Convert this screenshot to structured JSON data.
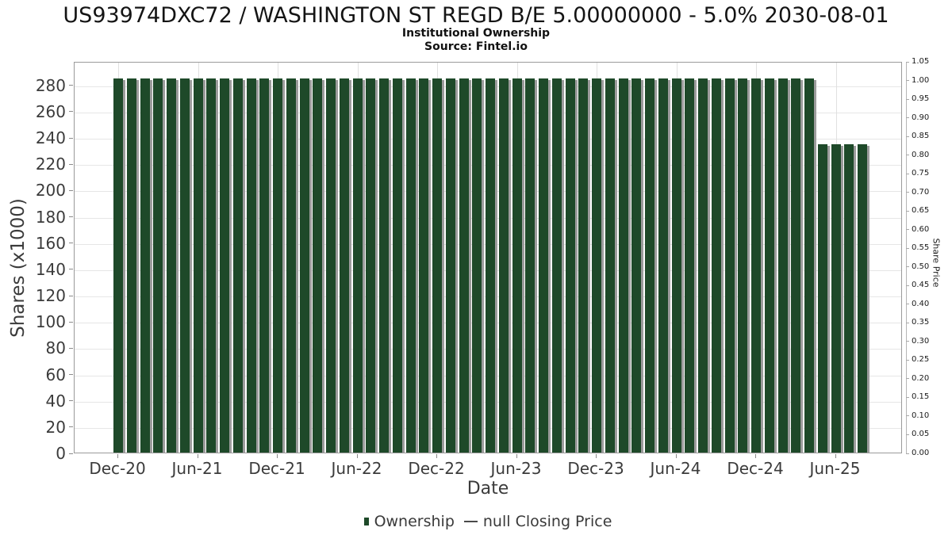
{
  "title": "US93974DXC72 / WASHINGTON ST REGD B/E 5.00000000 - 5.0% 2030-08-01",
  "subtitle": "Institutional Ownership",
  "source": "Source: Fintel.io",
  "legend": {
    "ownership_label": "Ownership",
    "price_label": "null Closing Price"
  },
  "colors": {
    "bar": "#1e4929",
    "bar_shadow": "#9c9c9c",
    "grid": "#e6e6e6",
    "spine": "#9a9a9a"
  },
  "axes": {
    "left": {
      "label": "Shares (x1000)",
      "ticks": [
        0,
        20,
        40,
        60,
        80,
        100,
        120,
        140,
        160,
        180,
        200,
        220,
        240,
        260,
        280
      ],
      "max": 298
    },
    "right": {
      "label": "Share Price",
      "ticks": [
        "0.00",
        "0.05",
        "0.10",
        "0.15",
        "0.20",
        "0.25",
        "0.30",
        "0.35",
        "0.40",
        "0.45",
        "0.50",
        "0.55",
        "0.60",
        "0.65",
        "0.70",
        "0.75",
        "0.80",
        "0.85",
        "0.90",
        "0.95",
        "1.00",
        "1.05"
      ],
      "max": 1.05
    },
    "x": {
      "label": "Date",
      "ticks": [
        "Dec-20",
        "Jun-21",
        "Dec-21",
        "Jun-22",
        "Dec-22",
        "Jun-23",
        "Dec-23",
        "Jun-24",
        "Dec-24",
        "Jun-25"
      ]
    }
  },
  "chart_data": {
    "type": "bar",
    "title": "US93974DXC72 / WASHINGTON ST REGD B/E 5.00000000 - 5.0% 2030-08-01",
    "subtitle": "Institutional Ownership",
    "source": "Source: Fintel.io",
    "series_name": "Ownership",
    "xlabel": "Date",
    "ylabel": "Shares (x1000)",
    "ylabel_right": "Share Price",
    "ylim_left": [
      0,
      298
    ],
    "ylim_right": [
      0,
      1.05
    ],
    "grid": true,
    "legend_position": "bottom",
    "x": [
      "Dec-20",
      "Jan-21",
      "Feb-21",
      "Mar-21",
      "Apr-21",
      "May-21",
      "Jun-21",
      "Jul-21",
      "Aug-21",
      "Sep-21",
      "Oct-21",
      "Nov-21",
      "Dec-21",
      "Jan-22",
      "Feb-22",
      "Mar-22",
      "Apr-22",
      "May-22",
      "Jun-22",
      "Jul-22",
      "Aug-22",
      "Sep-22",
      "Oct-22",
      "Nov-22",
      "Dec-22",
      "Jan-23",
      "Feb-23",
      "Mar-23",
      "Apr-23",
      "May-23",
      "Jun-23",
      "Jul-23",
      "Aug-23",
      "Sep-23",
      "Oct-23",
      "Nov-23",
      "Dec-23",
      "Jan-24",
      "Feb-24",
      "Mar-24",
      "Apr-24",
      "May-24",
      "Jun-24",
      "Jul-24",
      "Aug-24",
      "Sep-24",
      "Oct-24",
      "Nov-24",
      "Dec-24",
      "Jan-25",
      "Feb-25",
      "Mar-25",
      "Apr-25",
      "May-25",
      "Jun-25",
      "Jul-25",
      "Aug-25"
    ],
    "values": [
      284.5,
      284.5,
      284.5,
      284.5,
      284.5,
      284.5,
      284.5,
      284.5,
      284.5,
      284.5,
      284.5,
      284.5,
      284.5,
      284.5,
      284.5,
      284.5,
      284.5,
      284.5,
      284.5,
      284.5,
      284.5,
      284.5,
      284.5,
      284.5,
      284.5,
      284.5,
      284.5,
      284.5,
      284.5,
      284.5,
      284.5,
      284.5,
      284.5,
      284.5,
      284.5,
      284.5,
      284.5,
      284.5,
      284.5,
      284.5,
      284.5,
      284.5,
      284.5,
      284.5,
      284.5,
      284.5,
      284.5,
      284.5,
      284.5,
      284.5,
      284.5,
      284.5,
      284.5,
      234.9,
      234.9,
      234.9,
      234.9
    ]
  }
}
